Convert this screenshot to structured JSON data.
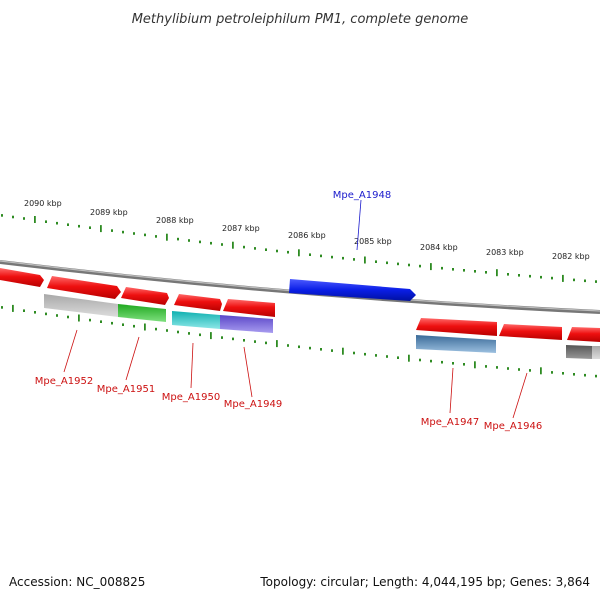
{
  "title": "Methylibium petroleiphilum PM1, complete genome",
  "footer": {
    "accession": "Accession: NC_008825",
    "summary": "Topology: circular; Length: 4,044,195 bp; Genes: 3,864"
  },
  "kbp_labels": [
    "2090 kbp",
    "2089 kbp",
    "2088 kbp",
    "2087 kbp",
    "2086 kbp",
    "2085 kbp",
    "2084 kbp",
    "2083 kbp",
    "2082 kbp"
  ],
  "colors": {
    "forward_gene": "#e8141a",
    "highlight_gene": "#0a1ee6",
    "backbone": "#8a8a8a",
    "ticks": "#2e8b22",
    "label_red": "#cc1111",
    "label_blue": "#1a1acc",
    "gray_gene": "#bdbdbd",
    "green_gene": "#33cc33",
    "cyan_gene": "#22c8c8",
    "purple_gene": "#7766dd",
    "steelblue_gene": "#4a7fb0",
    "darkgray_gene": "#666666"
  },
  "genes": [
    {
      "label": "Mpe_A1948",
      "color": "label_blue"
    },
    {
      "label": "Mpe_A1952",
      "color": "label_red"
    },
    {
      "label": "Mpe_A1951",
      "color": "label_red"
    },
    {
      "label": "Mpe_A1950",
      "color": "label_red"
    },
    {
      "label": "Mpe_A1949",
      "color": "label_red"
    },
    {
      "label": "Mpe_A1947",
      "color": "label_red"
    },
    {
      "label": "Mpe_A1946",
      "color": "label_red"
    }
  ]
}
